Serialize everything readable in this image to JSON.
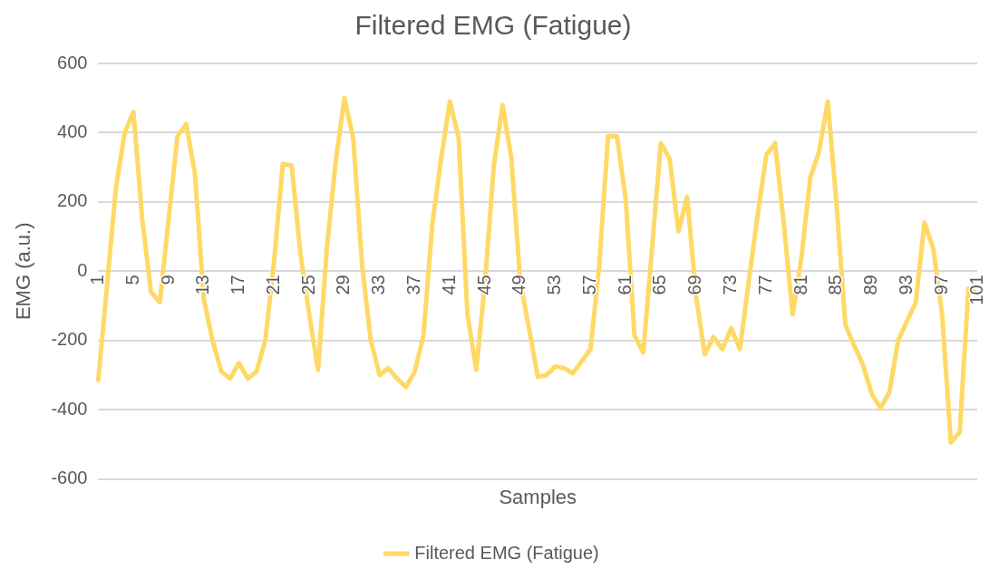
{
  "chart_data": {
    "type": "line",
    "title": "Filtered EMG (Fatigue)",
    "xlabel": "Samples",
    "ylabel": "EMG (a.u.)",
    "categories": [
      "1",
      null,
      null,
      null,
      "5",
      null,
      null,
      null,
      "9",
      null,
      null,
      null,
      "13",
      null,
      null,
      null,
      "17",
      null,
      null,
      null,
      "21",
      null,
      null,
      null,
      "25",
      null,
      null,
      null,
      "29",
      null,
      null,
      null,
      "33",
      null,
      null,
      null,
      "37",
      null,
      null,
      null,
      "41",
      null,
      null,
      null,
      "45",
      null,
      null,
      null,
      "49",
      null,
      null,
      null,
      "53",
      null,
      null,
      null,
      "57",
      null,
      null,
      null,
      "61",
      null,
      null,
      null,
      "65",
      null,
      null,
      null,
      "69",
      null,
      null,
      null,
      "73",
      null,
      null,
      null,
      "77",
      null,
      null,
      null,
      "81",
      null,
      null,
      null,
      "85",
      null,
      null,
      null,
      "89",
      null,
      null,
      null,
      "93",
      null,
      null,
      null,
      "97",
      null,
      null,
      null,
      "101"
    ],
    "series": [
      {
        "name": "Filtered EMG (Fatigue)",
        "color": "#ffd966",
        "values": [
          -314,
          -40,
          240,
          400,
          460,
          150,
          -60,
          -90,
          150,
          390,
          425,
          280,
          -80,
          -200,
          -290,
          -310,
          -265,
          -310,
          -290,
          -200,
          30,
          310,
          305,
          50,
          -125,
          -285,
          65,
          315,
          500,
          385,
          20,
          -200,
          -300,
          -280,
          -310,
          -335,
          -290,
          -185,
          135,
          325,
          490,
          385,
          -125,
          -285,
          -30,
          305,
          480,
          325,
          -30,
          -165,
          -305,
          -300,
          -275,
          -280,
          -295,
          -260,
          -225,
          20,
          390,
          390,
          210,
          -185,
          -235,
          65,
          370,
          325,
          115,
          215,
          -70,
          -240,
          -190,
          -225,
          -165,
          -225,
          -30,
          160,
          335,
          370,
          135,
          -125,
          40,
          270,
          345,
          490,
          190,
          -155,
          -215,
          -270,
          -355,
          -395,
          -350,
          -200,
          -145,
          -90,
          140,
          65,
          -125,
          -495,
          -465,
          -50,
          -65
        ]
      }
    ],
    "ylim": [
      -600,
      600
    ],
    "yticks": [
      -600,
      -400,
      -200,
      0,
      200,
      400,
      600
    ],
    "grid": "y",
    "legend": "bottom",
    "marker": "none",
    "line_style": "solid"
  }
}
